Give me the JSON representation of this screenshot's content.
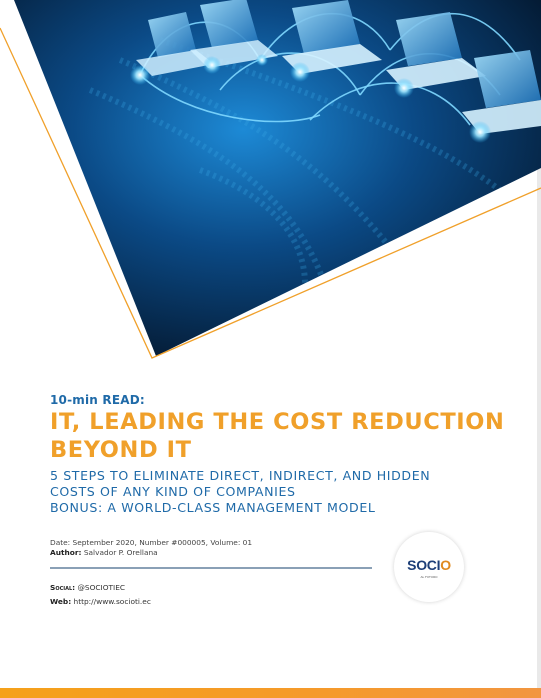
{
  "header": {
    "kicker": "10-min READ:",
    "title": "IT, LEADING THE COST REDUCTION BEYOND IT",
    "subtitle_lines": [
      "5 STEPS TO ELIMINATE DIRECT, INDIRECT, AND HIDDEN",
      "COSTS OF ANY KIND OF COMPANIES",
      "BONUS: A WORLD-CLASS MANAGEMENT MODEL"
    ]
  },
  "meta": {
    "date_line": "Date: September 2020, Number #000005, Volume: 01",
    "author_label": "Author:",
    "author_value": "Salvador P. Orellana"
  },
  "contact": {
    "social_label": "Social:",
    "social_value": "@SOCIOTIEC",
    "web_label": "Web:",
    "web_value": "http://www.socioti.ec"
  },
  "logo": {
    "name_part1": "SOC",
    "name_part2": "I",
    "name_part3": "O",
    "tagline": "AL FUTURO"
  },
  "colors": {
    "accent_orange": "#f0a02a",
    "accent_blue": "#1f6aa8",
    "hero_dark": "#041a33",
    "hero_glow": "#29b6f6"
  },
  "icons": {
    "hero": "laptop-network-illustration"
  }
}
